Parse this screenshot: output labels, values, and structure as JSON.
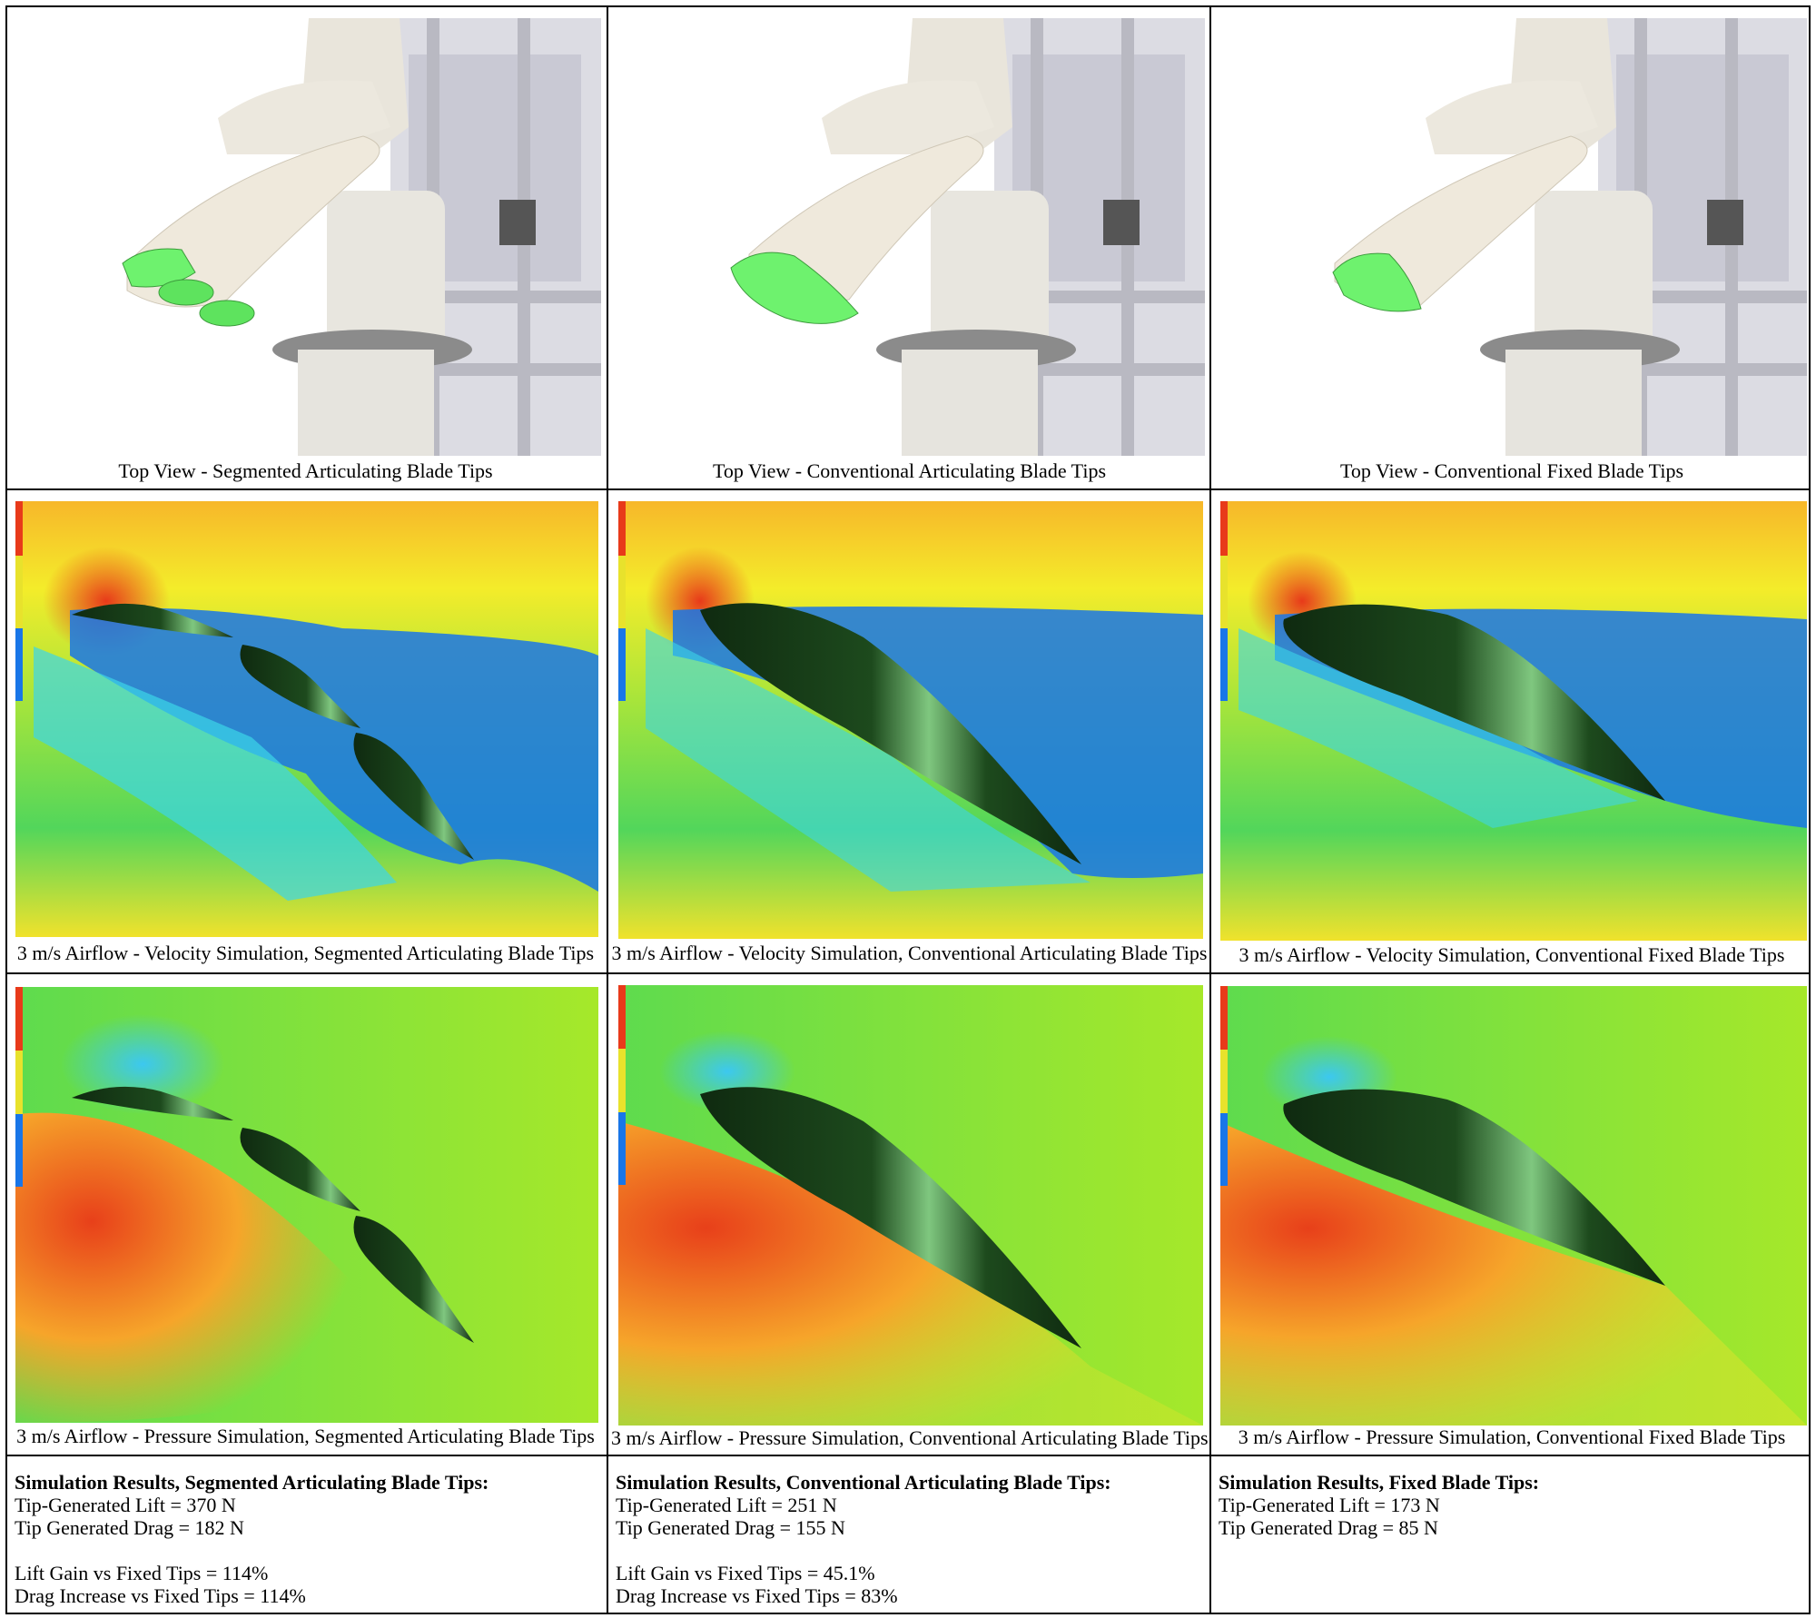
{
  "columns": [
    {
      "id": "segmented",
      "top_caption": "Top View - Segmented Articulating Blade Tips",
      "velocity_caption": "3 m/s Airflow - Velocity Simulation, Segmented Articulating Blade Tips",
      "pressure_caption": "3 m/s Airflow - Pressure Simulation, Segmented Articulating Blade Tips",
      "results_title": "Simulation Results, Segmented Articulating Blade Tips:",
      "lift": "Tip-Generated Lift = 370 N",
      "drag": "Tip Generated Drag = 182 N",
      "lift_gain": "Lift Gain vs Fixed Tips = 114%",
      "drag_increase": "Drag Increase vs Fixed Tips = 114%"
    },
    {
      "id": "conventional-articulating",
      "top_caption": "Top View - Conventional Articulating Blade Tips",
      "velocity_caption": "3 m/s Airflow - Velocity Simulation, Conventional Articulating Blade Tips",
      "pressure_caption": "3 m/s Airflow - Pressure Simulation, Conventional Articulating Blade Tips",
      "results_title": "Simulation Results, Conventional Articulating Blade Tips:",
      "lift": "Tip-Generated Lift = 251 N",
      "drag": "Tip Generated Drag = 155 N",
      "lift_gain": "Lift Gain vs Fixed Tips = 45.1%",
      "drag_increase": "Drag Increase vs Fixed Tips = 83%"
    },
    {
      "id": "fixed",
      "top_caption": "Top View - Conventional Fixed Blade Tips",
      "velocity_caption": "3 m/s Airflow - Velocity Simulation, Conventional Fixed Blade Tips",
      "pressure_caption": "3 m/s Airflow - Pressure Simulation, Conventional Fixed Blade Tips",
      "results_title": "Simulation Results, Fixed Blade Tips:",
      "lift": "Tip-Generated Lift = 173 N",
      "drag": "Tip Generated Drag = 85 N",
      "lift_gain": "",
      "drag_increase": ""
    }
  ],
  "colors": {
    "blade_body": "#efe9dc",
    "blade_tip": "#6ef26e",
    "airfoil": "#0f2a10",
    "airfoil_highlight": "#7fc77f"
  }
}
